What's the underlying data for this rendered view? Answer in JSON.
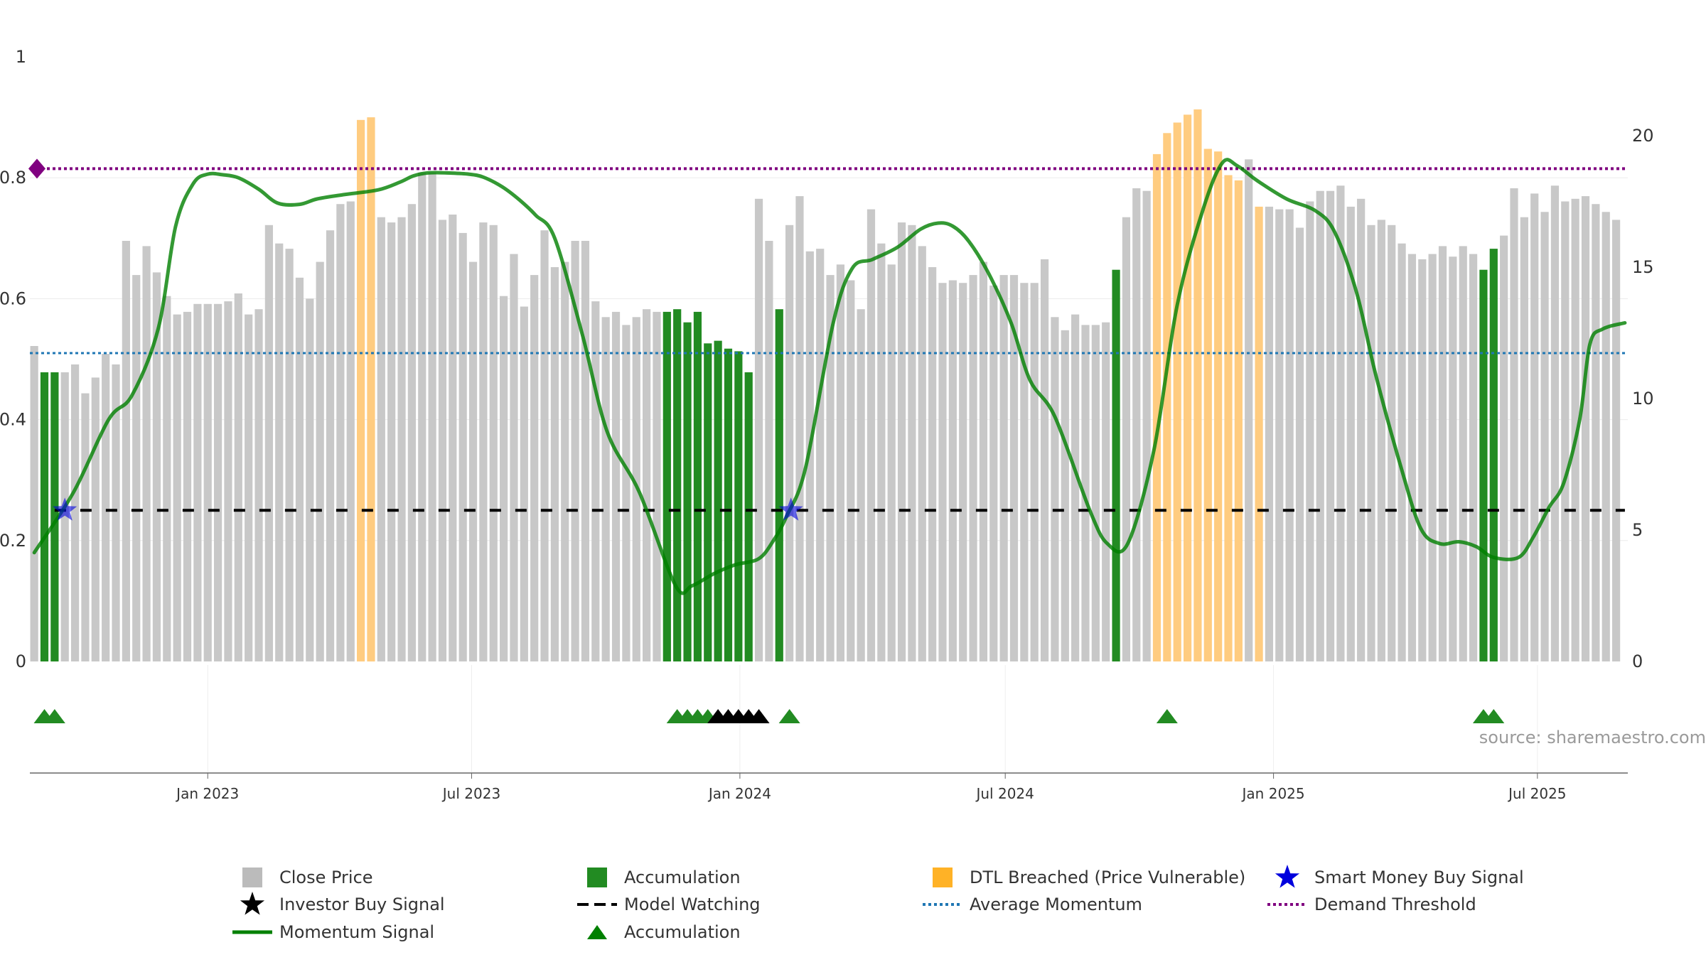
{
  "chart_data": {
    "type": "bar",
    "title": "",
    "source": "source: sharemaestro.com",
    "left_axis": {
      "ylim": [
        0,
        1
      ],
      "ticks": [
        0,
        0.2,
        0.4,
        0.6,
        0.8,
        1
      ],
      "tick_labels": [
        "0",
        "0.2",
        "0.4",
        "0.6",
        "0.8",
        "1"
      ]
    },
    "right_axis": {
      "ylim": [
        0,
        23
      ],
      "ticks": [
        0,
        5,
        10,
        15,
        20
      ],
      "tick_labels": [
        "0",
        "5",
        "10",
        "15",
        "20"
      ]
    },
    "x_axis": {
      "range": [
        "2022-09-01",
        "2025-09-01"
      ],
      "ticks": [
        {
          "date": "2023-01-01",
          "label": "Jan 2023"
        },
        {
          "date": "2023-07-01",
          "label": "Jul 2023"
        },
        {
          "date": "2024-01-01",
          "label": "Jan 2024"
        },
        {
          "date": "2024-07-01",
          "label": "Jul 2024"
        },
        {
          "date": "2025-01-01",
          "label": "Jan 2025"
        },
        {
          "date": "2025-07-01",
          "label": "Jul 2025"
        }
      ]
    },
    "bars": {
      "start_date": "2022-09-04",
      "step_days": 7,
      "close_price": [
        12.0,
        11.0,
        11.0,
        11.0,
        11.3,
        10.2,
        10.8,
        11.7,
        11.3,
        16.0,
        14.7,
        15.8,
        14.8,
        13.9,
        13.2,
        13.3,
        13.6,
        13.6,
        13.6,
        13.7,
        14.0,
        13.2,
        13.4,
        16.6,
        15.9,
        15.7,
        14.6,
        13.8,
        15.2,
        16.4,
        17.4,
        17.5,
        20.6,
        20.7,
        16.9,
        16.7,
        16.9,
        17.4,
        18.6,
        18.6,
        16.8,
        17.0,
        16.3,
        15.2,
        16.7,
        16.6,
        13.9,
        15.5,
        13.5,
        14.7,
        16.4,
        15.0,
        15.2,
        16.0,
        16.0,
        13.7,
        13.1,
        13.3,
        12.8,
        13.1,
        13.4,
        13.3,
        13.3,
        13.4,
        12.9,
        13.3,
        12.1,
        12.2,
        11.9,
        11.8,
        11.0,
        17.6,
        16.0,
        13.4,
        16.6,
        17.7,
        15.6,
        15.7,
        14.7,
        15.1,
        14.5,
        13.4,
        17.2,
        15.9,
        15.1,
        16.7,
        16.6,
        15.8,
        15.0,
        14.4,
        14.5,
        14.4,
        14.7,
        15.2,
        14.3,
        14.7,
        14.7,
        14.4,
        14.4,
        15.3,
        13.1,
        12.6,
        13.2,
        12.8,
        12.8,
        12.9,
        14.9,
        16.9,
        18.0,
        17.9,
        19.3,
        20.1,
        20.5,
        20.8,
        21.0,
        19.5,
        19.4,
        18.5,
        18.3,
        19.1,
        17.3,
        17.3,
        17.2,
        17.2,
        16.5,
        17.5,
        17.9,
        17.9,
        18.1,
        17.3,
        17.6,
        16.6,
        16.8,
        16.6,
        15.9,
        15.5,
        15.3,
        15.5,
        15.8,
        15.4,
        15.8,
        15.5,
        14.9,
        15.7,
        16.2,
        18.0,
        16.9,
        17.8,
        17.1,
        18.1,
        17.5,
        17.6,
        17.7,
        17.4,
        17.1,
        16.8
      ],
      "kind": [
        "c",
        "a",
        "a",
        "c",
        "c",
        "c",
        "c",
        "c",
        "c",
        "c",
        "c",
        "c",
        "c",
        "c",
        "c",
        "c",
        "c",
        "c",
        "c",
        "c",
        "c",
        "c",
        "c",
        "c",
        "c",
        "c",
        "c",
        "c",
        "c",
        "c",
        "c",
        "c",
        "d",
        "d",
        "c",
        "c",
        "c",
        "c",
        "c",
        "c",
        "c",
        "c",
        "c",
        "c",
        "c",
        "c",
        "c",
        "c",
        "c",
        "c",
        "c",
        "c",
        "c",
        "c",
        "c",
        "c",
        "c",
        "c",
        "c",
        "c",
        "c",
        "c",
        "a",
        "a",
        "a",
        "a",
        "a",
        "a",
        "a",
        "a",
        "a",
        "c",
        "c",
        "a",
        "c",
        "c",
        "c",
        "c",
        "c",
        "c",
        "c",
        "c",
        "c",
        "c",
        "c",
        "c",
        "c",
        "c",
        "c",
        "c",
        "c",
        "c",
        "c",
        "c",
        "c",
        "c",
        "c",
        "c",
        "c",
        "c",
        "c",
        "c",
        "c",
        "c",
        "c",
        "c",
        "a",
        "c",
        "c",
        "c",
        "d",
        "d",
        "d",
        "d",
        "d",
        "d",
        "d",
        "d",
        "d",
        "c",
        "d",
        "c",
        "c",
        "c",
        "c",
        "c",
        "c",
        "c",
        "c",
        "c",
        "c",
        "c",
        "c",
        "c",
        "c",
        "c",
        "c",
        "c",
        "c",
        "c",
        "c",
        "c",
        "a",
        "a",
        "c",
        "c",
        "c",
        "c",
        "c",
        "c",
        "c",
        "c",
        "c",
        "c",
        "c",
        "c",
        "c",
        "c",
        "c",
        "c"
      ]
    },
    "momentum_signal": {
      "dates": [
        "2022-09-04",
        "2022-10-01",
        "2022-10-25",
        "2022-11-10",
        "2022-11-28",
        "2022-12-10",
        "2022-12-22",
        "2023-01-01",
        "2023-01-11",
        "2023-01-22",
        "2023-02-05",
        "2023-02-18",
        "2023-03-05",
        "2023-03-17",
        "2023-04-04",
        "2023-04-28",
        "2023-05-13",
        "2023-05-22",
        "2023-06-01",
        "2023-06-14",
        "2023-06-29",
        "2023-07-09",
        "2023-07-22",
        "2023-08-03",
        "2023-08-14",
        "2023-08-27",
        "2023-09-15",
        "2023-10-02",
        "2023-10-24",
        "2023-11-18",
        "2023-11-29",
        "2023-12-14",
        "2023-12-29",
        "2024-01-14",
        "2024-01-24",
        "2024-02-02",
        "2024-02-15",
        "2024-03-05",
        "2024-03-18",
        "2024-04-01",
        "2024-04-18",
        "2024-05-04",
        "2024-05-16",
        "2024-05-26",
        "2024-06-06",
        "2024-06-20",
        "2024-07-05",
        "2024-07-18",
        "2024-08-04",
        "2024-08-28",
        "2024-09-09",
        "2024-09-23",
        "2024-10-11",
        "2024-10-27",
        "2024-11-14",
        "2024-11-27",
        "2024-12-07",
        "2024-12-21",
        "2025-01-10",
        "2025-01-30",
        "2025-02-12",
        "2025-02-27",
        "2025-03-12",
        "2025-03-29",
        "2025-04-12",
        "2025-04-25",
        "2025-05-08",
        "2025-05-20",
        "2025-06-01",
        "2025-06-18",
        "2025-06-28",
        "2025-07-09",
        "2025-07-19",
        "2025-07-30",
        "2025-08-06",
        "2025-08-15",
        "2025-08-30"
      ],
      "values": [
        0.18,
        0.28,
        0.4,
        0.44,
        0.55,
        0.72,
        0.79,
        0.806,
        0.805,
        0.8,
        0.781,
        0.758,
        0.756,
        0.765,
        0.772,
        0.78,
        0.793,
        0.803,
        0.808,
        0.808,
        0.806,
        0.801,
        0.785,
        0.763,
        0.738,
        0.7,
        0.54,
        0.38,
        0.28,
        0.125,
        0.125,
        0.145,
        0.16,
        0.17,
        0.2,
        0.24,
        0.32,
        0.56,
        0.65,
        0.665,
        0.685,
        0.715,
        0.725,
        0.72,
        0.695,
        0.64,
        0.56,
        0.465,
        0.405,
        0.25,
        0.195,
        0.195,
        0.35,
        0.59,
        0.75,
        0.825,
        0.82,
        0.795,
        0.765,
        0.745,
        0.71,
        0.61,
        0.475,
        0.325,
        0.22,
        0.195,
        0.198,
        0.19,
        0.172,
        0.172,
        0.205,
        0.255,
        0.295,
        0.4,
        0.525,
        0.55,
        0.56
      ]
    },
    "model_watching": {
      "value": 0.25,
      "from": "2022-09-18",
      "to": "2025-08-30"
    },
    "average_momentum": {
      "value": 0.51
    },
    "demand_threshold": {
      "value": 0.815
    },
    "smart_money_buy_signals": [
      {
        "date": "2022-09-25",
        "value": 0.25
      },
      {
        "date": "2024-02-05",
        "value": 0.25
      }
    ],
    "accumulation_markers": [
      "2022-09-11",
      "2022-09-18",
      "2023-11-19",
      "2023-11-26",
      "2023-12-03",
      "2023-12-10",
      "2024-02-04",
      "2024-10-20",
      "2025-05-25",
      "2025-06-01"
    ],
    "investor_buy_signals": [
      "2023-12-17",
      "2023-12-24",
      "2023-12-31",
      "2024-01-07",
      "2024-01-14"
    ],
    "legend": [
      {
        "label": "Close Price",
        "symbol": "square",
        "color": "#bbbbbb"
      },
      {
        "label": "Accumulation",
        "symbol": "square",
        "color": "#228b22"
      },
      {
        "label": "DTL Breached (Price Vulnerable)",
        "symbol": "square",
        "color": "#ffa500"
      },
      {
        "label": "Smart Money Buy Signal",
        "symbol": "star",
        "color": "#0000dd"
      },
      {
        "label": "Investor Buy Signal",
        "symbol": "star",
        "color": "#000000"
      },
      {
        "label": "Model Watching",
        "symbol": "dash",
        "color": "#000000"
      },
      {
        "label": "Average Momentum",
        "symbol": "dot",
        "color": "#1f77b4"
      },
      {
        "label": "Demand Threshold",
        "symbol": "dot",
        "color": "#800080"
      },
      {
        "label": "Momentum Signal",
        "symbol": "line",
        "color": "#008000"
      },
      {
        "label": "Accumulation",
        "symbol": "triangle",
        "color": "#008000"
      }
    ],
    "colors": {
      "close_price": "#c8c8c8",
      "accumulation": "#228b22",
      "dtl": "#ffcc80",
      "momentum": "#008000",
      "average_momentum": "#1f77b4",
      "demand_threshold": "#800080",
      "smart_money": "#0000dd",
      "investor": "#000000"
    }
  }
}
